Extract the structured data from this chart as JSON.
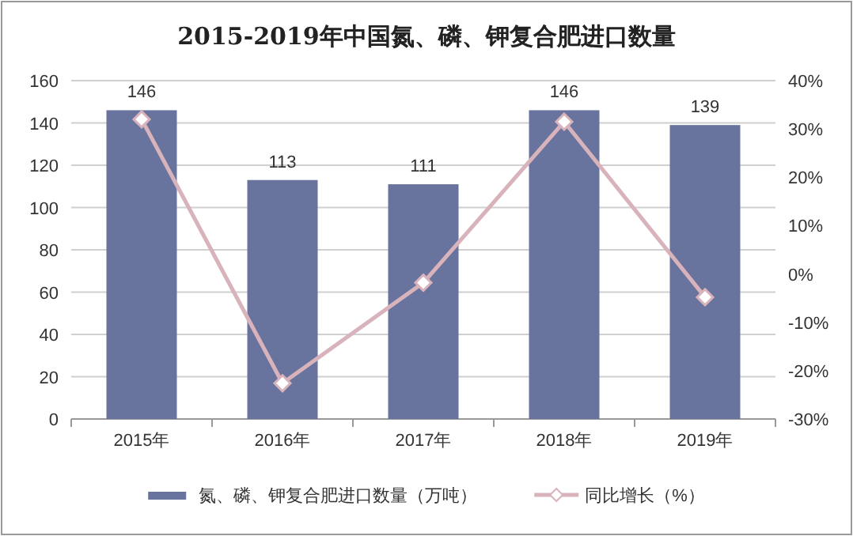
{
  "chart_data": {
    "type": "bar",
    "title": "2015-2019年中国氮、磷、钾复合肥进口数量",
    "categories": [
      "2015年",
      "2016年",
      "2017年",
      "2018年",
      "2019年"
    ],
    "series": [
      {
        "name": "氮、磷、钾复合肥进口数量（万吨）",
        "color": "#68739e",
        "values": [
          146,
          113,
          111,
          146,
          139
        ],
        "value_labels": [
          "146",
          "113",
          "111",
          "146",
          "139"
        ]
      },
      {
        "name": "同比增长（%）",
        "type": "line",
        "axis": "y2",
        "color": "#d9b3bb",
        "marker": "diamond",
        "values": [
          32,
          -22.6,
          -1.8,
          31.5,
          -4.8
        ]
      }
    ],
    "ylim": [
      0,
      160
    ],
    "yticks": [
      0,
      20,
      40,
      60,
      80,
      100,
      120,
      140,
      160
    ],
    "y2lim": [
      -30,
      40
    ],
    "y2ticks": [
      {
        "value": -30,
        "label": "-30%"
      },
      {
        "value": -20,
        "label": "-20%"
      },
      {
        "value": -10,
        "label": "-10%"
      },
      {
        "value": 0,
        "label": "0%"
      },
      {
        "value": 10,
        "label": "10%"
      },
      {
        "value": 20,
        "label": "20%"
      },
      {
        "value": 30,
        "label": "30%"
      },
      {
        "value": 40,
        "label": "40%"
      }
    ],
    "grid": "y",
    "legend": "bottom"
  }
}
